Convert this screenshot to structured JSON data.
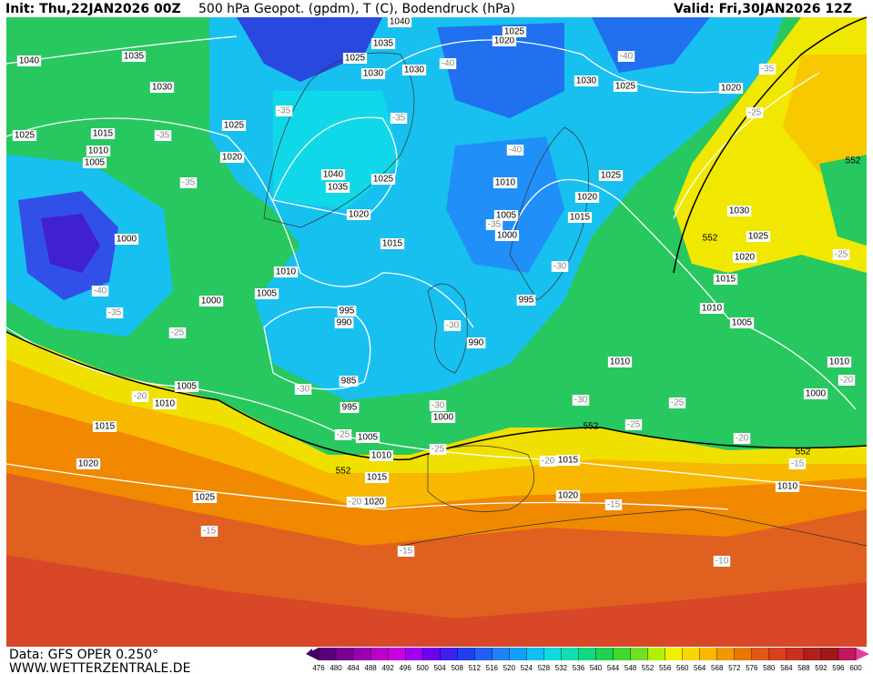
{
  "header": {
    "init": "Init: Thu,22JAN2026 00Z",
    "title": "500 hPa Geopot. (gpdm), T (C), Bodendruck (hPa)",
    "valid": "Valid: Fri,30JAN2026 12Z"
  },
  "footer": {
    "data": "Data: GFS OPER 0.250°",
    "site": "WWW.WETTERZENTRALE.DE"
  },
  "isobar_labels": [
    1040,
    1035,
    1030,
    1025,
    1015,
    1010,
    1005,
    1020,
    1025,
    1000,
    1000,
    1010,
    1005,
    995,
    990,
    985,
    995,
    1000,
    1005,
    1010,
    1015,
    1020,
    1025,
    1020,
    1015,
    1010,
    1005,
    990,
    995,
    1000,
    1005,
    1010,
    1015,
    1020,
    1025,
    1035,
    1040,
    1030,
    1035,
    1040,
    1025,
    1030,
    1020,
    1025,
    1030,
    1025,
    1020,
    1025,
    1020,
    1015,
    1030,
    1025,
    1020,
    1015,
    1010,
    1005,
    1010,
    1010,
    1000,
    1015,
    1020,
    1010
  ],
  "temperature_labels": [
    -35,
    -35,
    -35,
    -40,
    -35,
    -25,
    -20,
    -30,
    -35,
    -40,
    -40,
    -35,
    -25,
    -40,
    -35,
    -30,
    -30,
    -30,
    -25,
    -25,
    -20,
    -20,
    -15,
    -15,
    -15,
    -10,
    -30,
    -25,
    -25,
    -20,
    -15,
    -20,
    -25
  ],
  "geopotential_labels": [
    552,
    552,
    552,
    552,
    552
  ],
  "colorbar": {
    "ticks": [
      476,
      480,
      484,
      488,
      492,
      496,
      500,
      504,
      508,
      512,
      516,
      520,
      524,
      528,
      532,
      536,
      540,
      544,
      548,
      552,
      556,
      560,
      564,
      568,
      572,
      576,
      580,
      584,
      588,
      592,
      596,
      600
    ],
    "colors": [
      "#5a0078",
      "#7a0090",
      "#9a00b0",
      "#b800c8",
      "#c800e0",
      "#a000f0",
      "#7000f0",
      "#4020f0",
      "#2040f0",
      "#2060f8",
      "#2080f8",
      "#10a0f8",
      "#10c0f0",
      "#10d8e0",
      "#10e0b0",
      "#10d880",
      "#20d050",
      "#40d830",
      "#70e020",
      "#b0f000",
      "#f0f000",
      "#f8d800",
      "#f8b800",
      "#f09800",
      "#e87800",
      "#e05818",
      "#d84020",
      "#c83020",
      "#b02020",
      "#a01818",
      "#c01860"
    ]
  }
}
